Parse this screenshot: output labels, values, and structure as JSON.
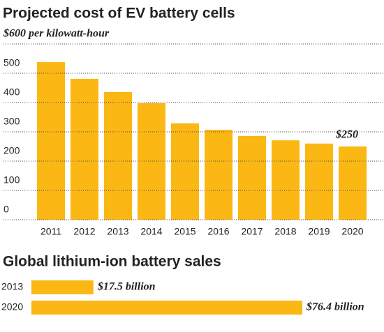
{
  "chart_data": [
    {
      "type": "bar",
      "title": "Projected cost of EV battery cells",
      "categories": [
        "2011",
        "2012",
        "2013",
        "2014",
        "2015",
        "2016",
        "2017",
        "2018",
        "2019",
        "2020"
      ],
      "values": [
        538,
        481,
        436,
        398,
        329,
        307,
        286,
        271,
        260,
        250
      ],
      "value_labels": [
        null,
        null,
        null,
        null,
        null,
        null,
        null,
        null,
        null,
        "$250"
      ],
      "color": "#fbb714",
      "ylim": [
        0,
        600
      ],
      "yticks": [
        0,
        100,
        200,
        300,
        400,
        500,
        {
          "value": 600,
          "label": "$600 per kilowatt-hour"
        }
      ],
      "grid": true
    },
    {
      "type": "hbar",
      "title": "Global lithium-ion battery sales",
      "categories": [
        "2013",
        "2020"
      ],
      "values": [
        17.5,
        76.4
      ],
      "value_labels": [
        "$17.5 billion",
        "$76.4 billion"
      ],
      "color": "#fbb714"
    }
  ]
}
